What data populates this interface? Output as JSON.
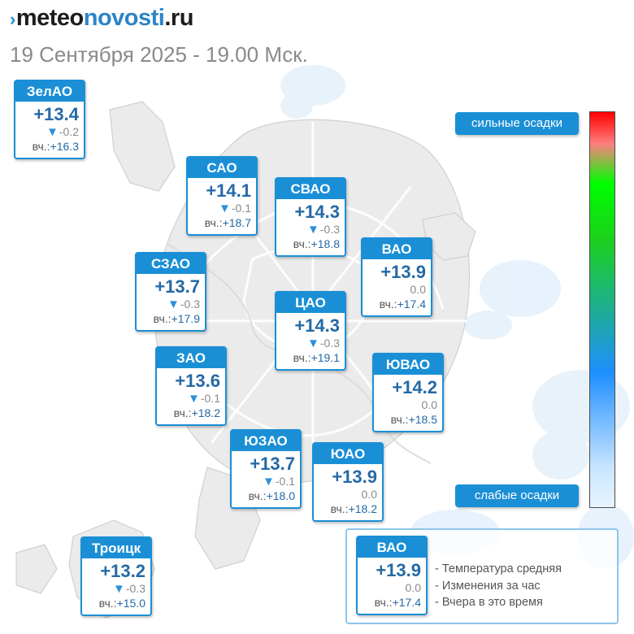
{
  "header": {
    "logo": {
      "mark": "›",
      "part1": "meteo",
      "part2": "novosti",
      "part3": ".ru"
    },
    "datetime": "19 Сентября 2025 - 19.00 Мск."
  },
  "districts": [
    {
      "name": "ЗелАО",
      "temp": "+13.4",
      "change_arrow": "▼",
      "change": "-0.2",
      "yesterday_label": "вч.:",
      "yesterday": "+16.3"
    },
    {
      "name": "САО",
      "temp": "+14.1",
      "change_arrow": "▼",
      "change": "-0.1",
      "yesterday_label": "вч.:",
      "yesterday": "+18.7"
    },
    {
      "name": "СВАО",
      "temp": "+14.3",
      "change_arrow": "▼",
      "change": "-0.3",
      "yesterday_label": "вч.:",
      "yesterday": "+18.8"
    },
    {
      "name": "ВАО",
      "temp": "+13.9",
      "change_arrow": "",
      "change": "0.0",
      "yesterday_label": "вч.:",
      "yesterday": "+17.4"
    },
    {
      "name": "СЗАО",
      "temp": "+13.7",
      "change_arrow": "▼",
      "change": "-0.3",
      "yesterday_label": "вч.:",
      "yesterday": "+17.9"
    },
    {
      "name": "ЦАО",
      "temp": "+14.3",
      "change_arrow": "▼",
      "change": "-0.3",
      "yesterday_label": "вч.:",
      "yesterday": "+19.1"
    },
    {
      "name": "ЗАО",
      "temp": "+13.6",
      "change_arrow": "▼",
      "change": "-0.1",
      "yesterday_label": "вч.:",
      "yesterday": "+18.2"
    },
    {
      "name": "ЮВАО",
      "temp": "+14.2",
      "change_arrow": "",
      "change": "0.0",
      "yesterday_label": "вч.:",
      "yesterday": "+18.5"
    },
    {
      "name": "ЮЗАО",
      "temp": "+13.7",
      "change_arrow": "▼",
      "change": "-0.1",
      "yesterday_label": "вч.:",
      "yesterday": "+18.0"
    },
    {
      "name": "ЮАО",
      "temp": "+13.9",
      "change_arrow": "",
      "change": "0.0",
      "yesterday_label": "вч.:",
      "yesterday": "+18.2"
    },
    {
      "name": "Троицк",
      "temp": "+13.2",
      "change_arrow": "▼",
      "change": "-0.3",
      "yesterday_label": "вч.:",
      "yesterday": "+15.0"
    }
  ],
  "precip_scale": {
    "top_label": "сильные осадки",
    "bottom_label": "слабые осадки",
    "colors": [
      "#ff0000",
      "#ff7f7f",
      "#00ff00",
      "#1bd11b",
      "#1f8fff",
      "#c9e5ff",
      "#e8f4ff"
    ]
  },
  "legend": {
    "sample": {
      "name": "ВАО",
      "temp": "+13.9",
      "change_arrow": "",
      "change": "0.0",
      "yesterday_label": "вч.:",
      "yesterday": "+17.4"
    },
    "lines": [
      "- Температура средняя",
      "- Изменения за час",
      "- Вчера в это время"
    ]
  },
  "colors": {
    "accent": "#1a8fd6",
    "temp_text": "#2569a6",
    "muted_text": "#8a8a8a",
    "map_fill": "#ebebeb",
    "precip_light": "#e3f0fb"
  }
}
